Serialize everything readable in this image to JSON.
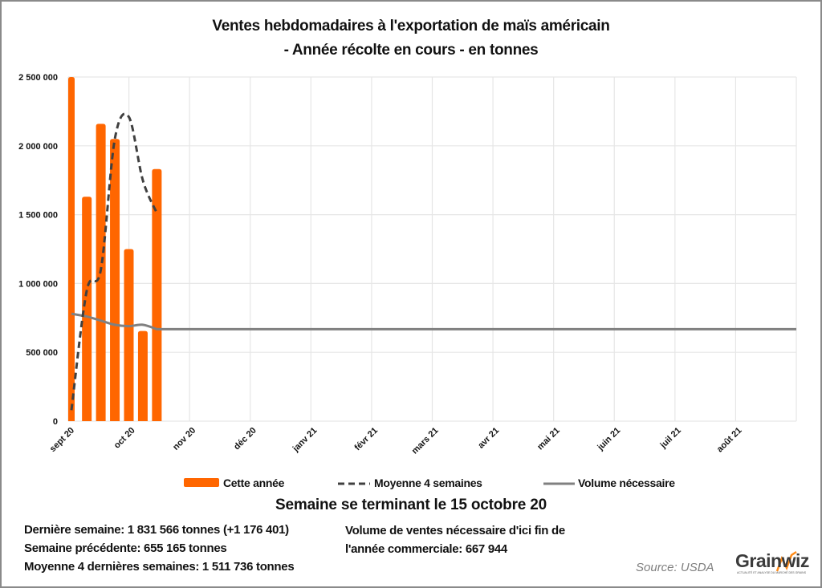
{
  "header": {
    "title_line1": "Ventes hebdomadaires à l'exportation de maïs américain",
    "title_line2": "- Année récolte en cours - en tonnes"
  },
  "chart_data": {
    "type": "bar+line",
    "title": "Ventes hebdomadaires à l'exportation de maïs américain - Année récolte en cours - en tonnes",
    "xlabel": "",
    "ylabel": "",
    "ylim": [
      0,
      2500000
    ],
    "y_ticks": [
      "0",
      "500 000",
      "1 000 000",
      "1 500 000",
      "2 000 000",
      "2 500 000"
    ],
    "y_tick_values": [
      0,
      500000,
      1000000,
      1500000,
      2000000,
      2500000
    ],
    "x_tick_labels": [
      "sept 20",
      "oct 20",
      "nov 20",
      "déc 20",
      "janv 21",
      "févr 21",
      "mars 21",
      "avr 21",
      "mai 21",
      "juin 21",
      "juil 21",
      "août 21"
    ],
    "x_range_weeks": [
      0,
      52
    ],
    "grid": true,
    "legend_position": "bottom",
    "series": [
      {
        "name": "Cette année",
        "kind": "bar",
        "color": "#ff6600",
        "weeks": [
          0,
          1,
          2,
          3,
          4,
          5,
          6
        ],
        "values": [
          2500000,
          1630000,
          2160000,
          2050000,
          1250000,
          655165,
          1831566
        ]
      },
      {
        "name": "Moyenne 4 semaines",
        "kind": "line-dashed",
        "color": "#404040",
        "weeks": [
          0,
          1,
          2,
          3,
          4,
          5,
          6
        ],
        "values": [
          80000,
          950000,
          1100000,
          2050000,
          2210000,
          1750000,
          1511736
        ]
      },
      {
        "name": "Volume nécessaire",
        "kind": "line",
        "color": "#808080",
        "weeks": [
          0,
          1,
          2,
          3,
          4,
          5,
          6,
          52
        ],
        "values": [
          780000,
          760000,
          730000,
          700000,
          690000,
          700000,
          667944,
          667944
        ]
      }
    ]
  },
  "legend": {
    "items": [
      "Cette année",
      "Moyenne 4 semaines",
      "Volume nécessaire"
    ]
  },
  "summary": {
    "week_heading": "Semaine se terminant le 15 octobre 20",
    "last_week": "Dernière semaine: 1 831 566 tonnes (+1 176 401)",
    "previous_week": "Semaine précédente: 655 165 tonnes",
    "avg_4_weeks": "Moyenne 4 dernières semaines: 1 511 736 tonnes",
    "needed_line1": "Volume de ventes nécessaire d'ici fin de",
    "needed_line2": "l'année commerciale: 667 944"
  },
  "footer": {
    "source": "Source: USDA",
    "logo_text": "Grainwiz",
    "logo_tagline": "ACTUALITÉ ET ANALYSE DU MARCHÉ DES GRAINS"
  },
  "colors": {
    "bar": "#ff6600",
    "avg_line": "#404040",
    "needed_line": "#808080",
    "grid": "#e6e6e6"
  }
}
